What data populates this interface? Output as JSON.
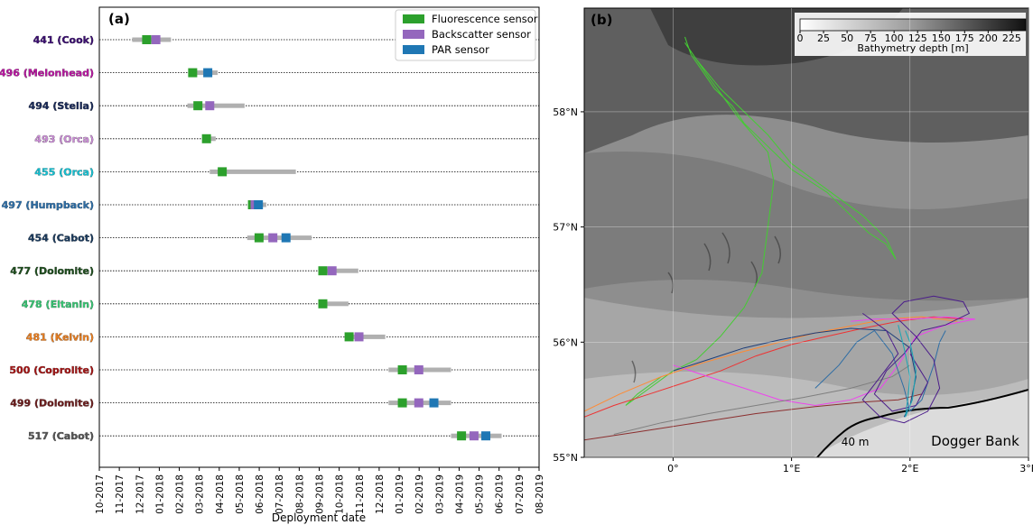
{
  "chart_data": [
    {
      "type": "timeline",
      "panel_label": "(a)",
      "xlabel": "Deployment date",
      "x_ticks": [
        "10-2017",
        "11-2017",
        "12-2017",
        "01-2018",
        "02-2018",
        "03-2018",
        "04-2018",
        "05-2018",
        "06-2018",
        "07-2018",
        "08-2018",
        "09-2018",
        "10-2018",
        "11-2018",
        "12-2018",
        "01-2019",
        "02-2019",
        "03-2019",
        "04-2019",
        "05-2019",
        "06-2019",
        "07-2019",
        "08-2019"
      ],
      "xlim": [
        "2017-10-01",
        "2019-08-01"
      ],
      "legend": [
        {
          "label": "Fluorescence sensor",
          "color": "#2ca02c"
        },
        {
          "label": "Backscatter sensor",
          "color": "#9467bd"
        },
        {
          "label": "PAR sensor",
          "color": "#1f77b4"
        }
      ],
      "deployment_color": "#b0b0b0",
      "rows": [
        {
          "label": "441 (Cook)",
          "color": "#3b0f70",
          "start": "2017-11-20",
          "end": "2018-01-18",
          "sensors": [
            {
              "type": "fluorescence",
              "date": "2017-12-12"
            },
            {
              "type": "backscatter",
              "date": "2017-12-26"
            }
          ]
        },
        {
          "label": "496 (Melonhead)",
          "color": "#b5179e",
          "start": "2018-02-15",
          "end": "2018-03-30",
          "sensors": [
            {
              "type": "fluorescence",
              "date": "2018-02-20"
            },
            {
              "type": "par",
              "date": "2018-03-15"
            }
          ]
        },
        {
          "label": "494 (Stella)",
          "color": "#1a2a57",
          "start": "2018-02-12",
          "end": "2018-05-10",
          "sensors": [
            {
              "type": "fluorescence",
              "date": "2018-02-28"
            },
            {
              "type": "backscatter",
              "date": "2018-03-18"
            }
          ]
        },
        {
          "label": "493 (Orca)",
          "color": "#c68bd1",
          "start": "2018-03-10",
          "end": "2018-03-27",
          "sensors": [
            {
              "type": "fluorescence",
              "date": "2018-03-13"
            }
          ]
        },
        {
          "label": "455 (Orca)",
          "color": "#17becf",
          "start": "2018-03-18",
          "end": "2018-07-27",
          "sensors": [
            {
              "type": "fluorescence",
              "date": "2018-04-06"
            }
          ]
        },
        {
          "label": "497 (Humpback)",
          "color": "#2e6da4",
          "start": "2018-05-18",
          "end": "2018-06-12",
          "sensors": [
            {
              "type": "fluorescence",
              "date": "2018-05-22"
            },
            {
              "type": "backscatter",
              "date": "2018-05-26"
            },
            {
              "type": "par",
              "date": "2018-05-31"
            }
          ]
        },
        {
          "label": "454 (Cabot)",
          "color": "#1b3a5c",
          "start": "2018-05-14",
          "end": "2018-08-20",
          "sensors": [
            {
              "type": "fluorescence",
              "date": "2018-06-01"
            },
            {
              "type": "backscatter",
              "date": "2018-06-22"
            },
            {
              "type": "par",
              "date": "2018-07-12"
            }
          ]
        },
        {
          "label": "477 (Dolomite)",
          "color": "#1f4d1f",
          "start": "2018-09-01",
          "end": "2018-10-30",
          "sensors": [
            {
              "type": "fluorescence",
              "date": "2018-09-06"
            },
            {
              "type": "backscatter",
              "date": "2018-09-20"
            }
          ]
        },
        {
          "label": "478 (Eltanin)",
          "color": "#38c172",
          "start": "2018-09-01",
          "end": "2018-10-15",
          "sensors": [
            {
              "type": "fluorescence",
              "date": "2018-09-06"
            }
          ]
        },
        {
          "label": "481 (Kelvin)",
          "color": "#e67e22",
          "start": "2018-10-10",
          "end": "2018-12-10",
          "sensors": [
            {
              "type": "fluorescence",
              "date": "2018-10-16"
            },
            {
              "type": "backscatter",
              "date": "2018-10-31"
            }
          ]
        },
        {
          "label": "500 (Coprolite)",
          "color": "#a31515",
          "start": "2018-12-15",
          "end": "2019-03-20",
          "sensors": [
            {
              "type": "fluorescence",
              "date": "2019-01-05"
            },
            {
              "type": "backscatter",
              "date": "2019-01-30"
            }
          ]
        },
        {
          "label": "499 (Dolomite)",
          "color": "#6b1e1e",
          "start": "2018-12-15",
          "end": "2019-03-20",
          "sensors": [
            {
              "type": "fluorescence",
              "date": "2019-01-05"
            },
            {
              "type": "backscatter",
              "date": "2019-01-30"
            },
            {
              "type": "par",
              "date": "2019-02-22"
            }
          ]
        },
        {
          "label": "517 (Cabot)",
          "color": "#555555",
          "start": "2019-03-20",
          "end": "2019-06-05",
          "sensors": [
            {
              "type": "fluorescence",
              "date": "2019-04-05"
            },
            {
              "type": "backscatter",
              "date": "2019-04-24"
            },
            {
              "type": "par",
              "date": "2019-05-12"
            }
          ]
        }
      ]
    },
    {
      "type": "map",
      "panel_label": "(b)",
      "x_ticks": [
        {
          "value": 0,
          "label": "0°"
        },
        {
          "value": 1,
          "label": "1°E"
        },
        {
          "value": 2,
          "label": "2°E"
        },
        {
          "value": 3,
          "label": "3°E"
        }
      ],
      "y_ticks": [
        {
          "value": 55,
          "label": "55°N"
        },
        {
          "value": 56,
          "label": "56°N"
        },
        {
          "value": 57,
          "label": "57°N"
        },
        {
          "value": 58,
          "label": "58°N"
        }
      ],
      "xlim": [
        -0.75,
        3.0
      ],
      "ylim": [
        55.0,
        58.9
      ],
      "colorbar": {
        "label": "Bathymetry depth [m]",
        "ticks": [
          "0",
          "25",
          "50",
          "75",
          "100",
          "125",
          "150",
          "175",
          "200",
          "225"
        ],
        "range": [
          0,
          240
        ],
        "cmap": "greys"
      },
      "annotations": [
        {
          "text": "40 m",
          "lon": 1.42,
          "lat": 55.1
        },
        {
          "text": "Dogger Bank",
          "lon": 2.55,
          "lat": 55.1
        }
      ],
      "tracks": [
        {
          "color": "#44cc33",
          "points": [
            [
              0.1,
              58.65
            ],
            [
              0.15,
              58.5
            ],
            [
              0.25,
              58.35
            ],
            [
              0.35,
              58.2
            ],
            [
              0.5,
              58.05
            ],
            [
              0.6,
              57.9
            ],
            [
              0.75,
              57.75
            ],
            [
              0.9,
              57.6
            ],
            [
              1.0,
              57.5
            ],
            [
              1.15,
              57.4
            ],
            [
              1.3,
              57.3
            ],
            [
              1.5,
              57.1
            ],
            [
              1.65,
              56.95
            ],
            [
              1.8,
              56.85
            ],
            [
              1.88,
              56.72
            ],
            [
              1.8,
              56.9
            ],
            [
              1.6,
              57.1
            ],
            [
              1.4,
              57.25
            ],
            [
              1.2,
              57.4
            ],
            [
              1.0,
              57.55
            ],
            [
              0.8,
              57.8
            ],
            [
              0.6,
              58.0
            ],
            [
              0.4,
              58.2
            ],
            [
              0.2,
              58.45
            ],
            [
              0.1,
              58.6
            ],
            [
              0.3,
              58.3
            ],
            [
              0.55,
              57.95
            ],
            [
              0.8,
              57.65
            ],
            [
              0.85,
              57.4
            ],
            [
              0.8,
              57.0
            ],
            [
              0.75,
              56.6
            ],
            [
              0.6,
              56.3
            ],
            [
              0.4,
              56.05
            ],
            [
              0.2,
              55.85
            ],
            [
              0.0,
              55.75
            ],
            [
              -0.2,
              55.6
            ],
            [
              -0.4,
              55.45
            ],
            [
              -0.3,
              55.55
            ],
            [
              -0.1,
              55.7
            ]
          ]
        },
        {
          "color": "#ee3333",
          "points": [
            [
              -0.75,
              55.35
            ],
            [
              -0.5,
              55.45
            ],
            [
              -0.2,
              55.55
            ],
            [
              0.1,
              55.65
            ],
            [
              0.4,
              55.75
            ],
            [
              0.7,
              55.88
            ],
            [
              1.0,
              55.98
            ],
            [
              1.3,
              56.05
            ],
            [
              1.6,
              56.12
            ],
            [
              1.9,
              56.18
            ],
            [
              2.2,
              56.22
            ],
            [
              2.45,
              56.2
            ]
          ]
        },
        {
          "color": "#ff8a33",
          "points": [
            [
              -0.75,
              55.4
            ],
            [
              -0.45,
              55.55
            ],
            [
              -0.1,
              55.7
            ],
            [
              0.25,
              55.82
            ],
            [
              0.6,
              55.92
            ],
            [
              0.9,
              56.0
            ],
            [
              1.2,
              56.08
            ],
            [
              1.5,
              56.14
            ],
            [
              1.8,
              56.2
            ],
            [
              2.1,
              56.22
            ],
            [
              2.4,
              56.18
            ]
          ]
        },
        {
          "color": "#ee44ee",
          "points": [
            [
              0.0,
              55.8
            ],
            [
              0.3,
              55.7
            ],
            [
              0.6,
              55.6
            ],
            [
              0.9,
              55.5
            ],
            [
              1.2,
              55.45
            ],
            [
              1.5,
              55.5
            ],
            [
              1.75,
              55.6
            ],
            [
              1.9,
              55.8
            ],
            [
              2.05,
              56.05
            ],
            [
              2.3,
              56.15
            ],
            [
              2.55,
              56.2
            ],
            [
              2.3,
              56.22
            ],
            [
              2.0,
              56.2
            ],
            [
              1.7,
              56.2
            ],
            [
              1.5,
              56.18
            ]
          ]
        },
        {
          "color": "#7f7f7f",
          "points": [
            [
              -0.5,
              55.2
            ],
            [
              -0.1,
              55.3
            ],
            [
              0.3,
              55.38
            ],
            [
              0.7,
              55.45
            ],
            [
              1.1,
              55.52
            ],
            [
              1.5,
              55.6
            ],
            [
              1.85,
              55.7
            ],
            [
              2.0,
              55.8
            ]
          ]
        },
        {
          "color": "#8b2f2f",
          "points": [
            [
              -0.75,
              55.15
            ],
            [
              -0.3,
              55.22
            ],
            [
              0.2,
              55.3
            ],
            [
              0.7,
              55.38
            ],
            [
              1.2,
              55.44
            ],
            [
              1.6,
              55.48
            ],
            [
              1.9,
              55.5
            ],
            [
              2.1,
              55.55
            ]
          ]
        },
        {
          "color": "#1f3f7a",
          "points": [
            [
              0.0,
              55.75
            ],
            [
              0.3,
              55.85
            ],
            [
              0.6,
              55.95
            ],
            [
              0.9,
              56.02
            ],
            [
              1.2,
              56.08
            ],
            [
              1.5,
              56.12
            ],
            [
              1.8,
              56.1
            ],
            [
              2.0,
              55.95
            ],
            [
              2.05,
              55.7
            ],
            [
              2.0,
              55.45
            ],
            [
              1.95,
              55.35
            ]
          ]
        },
        {
          "color": "#2e6da4",
          "points": [
            [
              1.2,
              55.6
            ],
            [
              1.4,
              55.8
            ],
            [
              1.55,
              56.0
            ],
            [
              1.7,
              56.1
            ],
            [
              1.85,
              55.9
            ],
            [
              1.95,
              55.6
            ],
            [
              2.0,
              55.4
            ],
            [
              2.1,
              55.5
            ],
            [
              2.2,
              55.8
            ],
            [
              2.25,
              56.0
            ],
            [
              2.3,
              56.1
            ]
          ]
        },
        {
          "color": "#4b1d8a",
          "points": [
            [
              1.6,
              56.25
            ],
            [
              1.8,
              56.1
            ],
            [
              1.9,
              55.9
            ],
            [
              1.75,
              55.7
            ],
            [
              1.6,
              55.5
            ],
            [
              1.75,
              55.35
            ],
            [
              1.95,
              55.3
            ],
            [
              2.15,
              55.4
            ],
            [
              2.25,
              55.6
            ],
            [
              2.2,
              55.85
            ],
            [
              2.05,
              56.05
            ],
            [
              1.85,
              56.25
            ],
            [
              1.95,
              56.35
            ],
            [
              2.2,
              56.4
            ],
            [
              2.45,
              56.35
            ],
            [
              2.5,
              56.25
            ],
            [
              2.3,
              56.15
            ],
            [
              2.1,
              56.1
            ],
            [
              1.95,
              55.9
            ],
            [
              1.8,
              55.75
            ],
            [
              1.7,
              55.55
            ],
            [
              1.85,
              55.4
            ],
            [
              2.05,
              55.45
            ],
            [
              2.15,
              55.65
            ],
            [
              2.0,
              55.9
            ]
          ]
        },
        {
          "color": "#17a5b5",
          "points": [
            [
              1.9,
              56.15
            ],
            [
              1.95,
              55.95
            ],
            [
              2.0,
              55.7
            ],
            [
              1.98,
              55.5
            ],
            [
              1.96,
              55.35
            ],
            [
              2.02,
              55.5
            ],
            [
              2.05,
              55.75
            ],
            [
              2.0,
              56.0
            ],
            [
              1.96,
              56.1
            ]
          ]
        }
      ]
    }
  ]
}
